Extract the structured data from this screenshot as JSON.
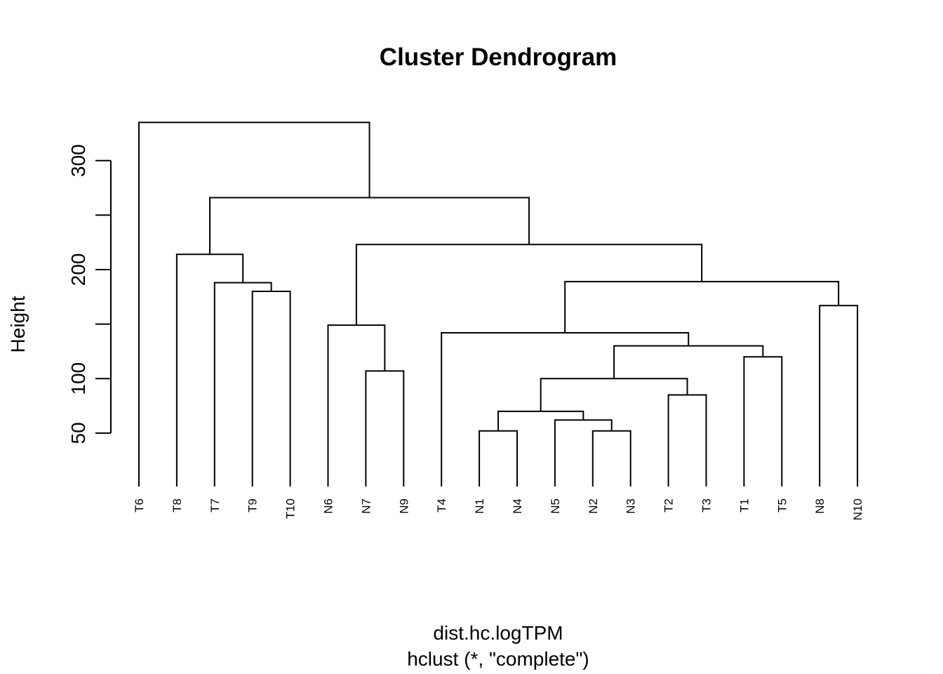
{
  "chart_data": {
    "type": "dendrogram",
    "title": "Cluster Dendrogram",
    "ylabel": "Height",
    "xlabel": "dist.hc.logTPM",
    "sublabel": "hclust (*, \"complete\")",
    "ylim": [
      0,
      340
    ],
    "y_ticks": [
      50,
      100,
      150,
      200,
      250,
      300
    ],
    "y_tick_labels": [
      "50",
      "100",
      "",
      "200",
      "",
      "300"
    ],
    "leaves": [
      "T6",
      "T8",
      "T7",
      "T9",
      "T10",
      "N6",
      "N7",
      "N9",
      "T4",
      "N1",
      "N4",
      "N5",
      "N2",
      "N3",
      "T2",
      "T3",
      "T1",
      "T5",
      "N8",
      "N10"
    ],
    "merges": [
      {
        "a": "T9",
        "b": "T10",
        "height": 180
      },
      {
        "a": "T7",
        "b": "m1",
        "height": 188
      },
      {
        "a": "T8",
        "b": "m2",
        "height": 214
      },
      {
        "a": "N7",
        "b": "N9",
        "height": 107
      },
      {
        "a": "N6",
        "b": "m4",
        "height": 149
      },
      {
        "a": "N1",
        "b": "N4",
        "height": 52
      },
      {
        "a": "N2",
        "b": "N3",
        "height": 52
      },
      {
        "a": "N5",
        "b": "m7",
        "height": 62
      },
      {
        "a": "m6",
        "b": "m8",
        "height": 70
      },
      {
        "a": "T2",
        "b": "T3",
        "height": 85
      },
      {
        "a": "m9",
        "b": "m10",
        "height": 100
      },
      {
        "a": "T1",
        "b": "T5",
        "height": 120
      },
      {
        "a": "m11",
        "b": "m12",
        "height": 130
      },
      {
        "a": "T4",
        "b": "m13",
        "height": 142
      },
      {
        "a": "N8",
        "b": "N10",
        "height": 167
      },
      {
        "a": "m14",
        "b": "m15",
        "height": 189
      },
      {
        "a": "m5",
        "b": "m16",
        "height": 223
      },
      {
        "a": "m3",
        "b": "m17",
        "height": 266
      },
      {
        "a": "T6",
        "b": "m18",
        "height": 335
      }
    ]
  }
}
